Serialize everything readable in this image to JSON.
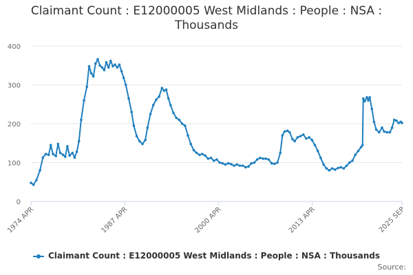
{
  "chart_data": {
    "type": "line",
    "title": "Claimant Count : E12000005 West Midlands : People : NSA : Thousands",
    "xlabel": "",
    "ylabel": "",
    "ylim": [
      0,
      400
    ],
    "yticks": [
      "0",
      "100",
      "200",
      "300",
      "400"
    ],
    "xlim": [
      1974.25,
      2025.67
    ],
    "xticks": [
      {
        "label": "1974 APR",
        "x": 1974.25
      },
      {
        "label": "1987 APR",
        "x": 1987.25
      },
      {
        "label": "2000 APR",
        "x": 2000.25
      },
      {
        "label": "2013 APR",
        "x": 2013.25
      },
      {
        "label": "2025 SEP",
        "x": 2025.67
      }
    ],
    "grid": true,
    "legend": "bottom-center",
    "series": [
      {
        "name": "Claimant Count : E12000005 West Midlands : People : NSA : Thousands",
        "color": "#1f7fbf",
        "points": [
          [
            1974.25,
            48
          ],
          [
            1974.6,
            43
          ],
          [
            1975.0,
            55
          ],
          [
            1975.5,
            80
          ],
          [
            1975.9,
            113
          ],
          [
            1976.3,
            122
          ],
          [
            1976.7,
            120
          ],
          [
            1977.0,
            145
          ],
          [
            1977.3,
            122
          ],
          [
            1977.7,
            117
          ],
          [
            1978.0,
            148
          ],
          [
            1978.3,
            125
          ],
          [
            1978.7,
            120
          ],
          [
            1979.0,
            115
          ],
          [
            1979.3,
            142
          ],
          [
            1979.6,
            118
          ],
          [
            1980.0,
            125
          ],
          [
            1980.3,
            113
          ],
          [
            1980.6,
            128
          ],
          [
            1980.9,
            155
          ],
          [
            1981.2,
            210
          ],
          [
            1981.6,
            260
          ],
          [
            1982.0,
            295
          ],
          [
            1982.3,
            348
          ],
          [
            1982.6,
            330
          ],
          [
            1982.9,
            322
          ],
          [
            1983.2,
            355
          ],
          [
            1983.5,
            366
          ],
          [
            1983.8,
            350
          ],
          [
            1984.1,
            345
          ],
          [
            1984.4,
            338
          ],
          [
            1984.7,
            358
          ],
          [
            1985.0,
            345
          ],
          [
            1985.3,
            362
          ],
          [
            1985.6,
            348
          ],
          [
            1985.9,
            352
          ],
          [
            1986.2,
            345
          ],
          [
            1986.5,
            352
          ],
          [
            1986.8,
            335
          ],
          [
            1987.1,
            318
          ],
          [
            1987.4,
            300
          ],
          [
            1987.8,
            265
          ],
          [
            1988.2,
            230
          ],
          [
            1988.5,
            195
          ],
          [
            1988.9,
            168
          ],
          [
            1989.3,
            155
          ],
          [
            1989.7,
            148
          ],
          [
            1990.1,
            158
          ],
          [
            1990.4,
            190
          ],
          [
            1990.8,
            225
          ],
          [
            1991.2,
            248
          ],
          [
            1991.6,
            262
          ],
          [
            1992.0,
            270
          ],
          [
            1992.4,
            292
          ],
          [
            1992.7,
            285
          ],
          [
            1993.0,
            288
          ],
          [
            1993.3,
            265
          ],
          [
            1993.6,
            248
          ],
          [
            1994.0,
            228
          ],
          [
            1994.4,
            215
          ],
          [
            1994.8,
            210
          ],
          [
            1995.2,
            200
          ],
          [
            1995.6,
            195
          ],
          [
            1996.0,
            170
          ],
          [
            1996.4,
            148
          ],
          [
            1996.8,
            132
          ],
          [
            1997.2,
            125
          ],
          [
            1997.6,
            120
          ],
          [
            1998.0,
            122
          ],
          [
            1998.4,
            118
          ],
          [
            1998.8,
            110
          ],
          [
            1999.2,
            112
          ],
          [
            1999.6,
            105
          ],
          [
            2000.0,
            108
          ],
          [
            2000.4,
            100
          ],
          [
            2000.8,
            98
          ],
          [
            2001.2,
            95
          ],
          [
            2001.6,
            98
          ],
          [
            2002.0,
            96
          ],
          [
            2002.4,
            92
          ],
          [
            2002.8,
            95
          ],
          [
            2003.2,
            92
          ],
          [
            2003.6,
            92
          ],
          [
            2004.0,
            88
          ],
          [
            2004.4,
            90
          ],
          [
            2004.8,
            98
          ],
          [
            2005.2,
            100
          ],
          [
            2005.6,
            108
          ],
          [
            2006.0,
            112
          ],
          [
            2006.4,
            110
          ],
          [
            2006.8,
            110
          ],
          [
            2007.2,
            108
          ],
          [
            2007.6,
            98
          ],
          [
            2008.0,
            97
          ],
          [
            2008.4,
            100
          ],
          [
            2008.8,
            125
          ],
          [
            2009.1,
            170
          ],
          [
            2009.4,
            180
          ],
          [
            2009.8,
            182
          ],
          [
            2010.1,
            178
          ],
          [
            2010.5,
            160
          ],
          [
            2010.8,
            155
          ],
          [
            2011.2,
            165
          ],
          [
            2011.6,
            168
          ],
          [
            2012.0,
            172
          ],
          [
            2012.4,
            162
          ],
          [
            2012.8,
            165
          ],
          [
            2013.2,
            158
          ],
          [
            2013.6,
            145
          ],
          [
            2014.0,
            130
          ],
          [
            2014.4,
            112
          ],
          [
            2014.8,
            95
          ],
          [
            2015.2,
            85
          ],
          [
            2015.6,
            80
          ],
          [
            2016.0,
            85
          ],
          [
            2016.4,
            82
          ],
          [
            2016.8,
            86
          ],
          [
            2017.2,
            88
          ],
          [
            2017.6,
            85
          ],
          [
            2018.0,
            92
          ],
          [
            2018.4,
            100
          ],
          [
            2018.8,
            105
          ],
          [
            2019.2,
            120
          ],
          [
            2019.6,
            130
          ],
          [
            2020.0,
            140
          ],
          [
            2020.2,
            145
          ],
          [
            2020.3,
            265
          ],
          [
            2020.5,
            258
          ],
          [
            2020.8,
            268
          ],
          [
            2021.0,
            260
          ],
          [
            2021.2,
            268
          ],
          [
            2021.5,
            238
          ],
          [
            2021.8,
            205
          ],
          [
            2022.1,
            185
          ],
          [
            2022.5,
            178
          ],
          [
            2022.9,
            190
          ],
          [
            2023.2,
            180
          ],
          [
            2023.6,
            178
          ],
          [
            2024.0,
            178
          ],
          [
            2024.3,
            190
          ],
          [
            2024.6,
            210
          ],
          [
            2024.9,
            208
          ],
          [
            2025.2,
            202
          ],
          [
            2025.5,
            205
          ],
          [
            2025.67,
            202
          ]
        ]
      }
    ]
  },
  "source_label": "Source:"
}
